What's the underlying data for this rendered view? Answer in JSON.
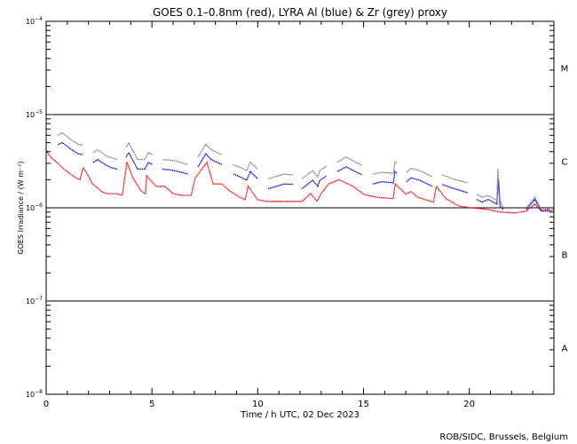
{
  "chart_data": {
    "type": "line",
    "title": "GOES 0.1–0.8nm (red), LYRA Al (blue) & Zr (grey) proxy",
    "xlabel": "Time / h UTC, 02 Dec 2023",
    "ylabel": "GOES Irradiance / (W m⁻²)",
    "xlim": [
      0,
      24
    ],
    "ylim": [
      1e-08,
      0.0001
    ],
    "yscale": "log",
    "xticks": [
      0,
      5,
      10,
      15,
      20
    ],
    "xtick_labels": [
      "0",
      "5",
      "10",
      "15",
      "20"
    ],
    "yticks": [
      {
        "value": 0.0001,
        "base": "10",
        "exp": "−4"
      },
      {
        "value": 1e-05,
        "base": "10",
        "exp": "−5"
      },
      {
        "value": 1e-06,
        "base": "10",
        "exp": "−6"
      },
      {
        "value": 1e-07,
        "base": "10",
        "exp": "−7"
      },
      {
        "value": 1e-08,
        "base": "10",
        "exp": "−8"
      }
    ],
    "flare_classes": [
      {
        "label": "M",
        "value": 3.16e-05
      },
      {
        "label": "C",
        "value": 3.16e-06
      },
      {
        "label": "B",
        "value": 3.16e-07
      },
      {
        "label": "A",
        "value": 3.16e-08
      }
    ],
    "class_lines": [
      1e-05,
      1e-06,
      1e-07
    ],
    "series": [
      {
        "name": "GOES 0.1-0.8nm",
        "color": "#ff0000",
        "segments": [
          [
            [
              0,
              4.1e-06
            ],
            [
              0.25,
              3.4e-06
            ],
            [
              0.5,
              3.1e-06
            ],
            [
              0.76,
              2.7e-06
            ],
            [
              1.1,
              2.35e-06
            ],
            [
              1.4,
              2.1e-06
            ],
            [
              1.6,
              2e-06
            ],
            [
              1.75,
              2.7e-06
            ],
            [
              1.9,
              2.4e-06
            ],
            [
              2.2,
              1.8e-06
            ],
            [
              2.65,
              1.48e-06
            ],
            [
              2.85,
              1.42e-06
            ],
            [
              3.3,
              1.42e-06
            ],
            [
              3.6,
              1.36e-06
            ],
            [
              3.82,
              3.1e-06
            ],
            [
              4.1,
              2.1e-06
            ],
            [
              4.5,
              1.5e-06
            ],
            [
              4.7,
              1.42e-06
            ],
            [
              4.75,
              2.2e-06
            ],
            [
              5.2,
              1.7e-06
            ],
            [
              5.6,
              1.7e-06
            ],
            [
              6.0,
              1.42e-06
            ],
            [
              6.4,
              1.36e-06
            ],
            [
              6.85,
              1.36e-06
            ],
            [
              7.05,
              2.1e-06
            ],
            [
              7.6,
              3.06e-06
            ],
            [
              7.9,
              1.8e-06
            ],
            [
              8.3,
              1.8e-06
            ],
            [
              8.7,
              1.5e-06
            ],
            [
              9.15,
              1.3e-06
            ],
            [
              9.4,
              1.22e-06
            ],
            [
              9.55,
              1.7e-06
            ],
            [
              10.0,
              1.22e-06
            ],
            [
              10.4,
              1.17e-06
            ],
            [
              11.25,
              1.17e-06
            ],
            [
              12.1,
              1.17e-06
            ],
            [
              12.5,
              1.42e-06
            ],
            [
              12.8,
              1.17e-06
            ],
            [
              13.0,
              1.42e-06
            ],
            [
              13.35,
              1.8e-06
            ],
            [
              13.85,
              2e-06
            ],
            [
              14.5,
              1.7e-06
            ],
            [
              15.0,
              1.4e-06
            ],
            [
              15.6,
              1.3e-06
            ],
            [
              16.4,
              1.25e-06
            ],
            [
              16.5,
              1.8e-06
            ],
            [
              17.0,
              1.4e-06
            ],
            [
              17.25,
              1.5e-06
            ],
            [
              17.55,
              1.3e-06
            ],
            [
              18.3,
              1.15e-06
            ],
            [
              18.45,
              1.7e-06
            ],
            [
              18.9,
              1.25e-06
            ],
            [
              19.5,
              1.05e-06
            ],
            [
              20.06,
              1e-06
            ],
            [
              20.9,
              9.6e-07
            ],
            [
              21.45,
              9e-07
            ],
            [
              22.15,
              8.8e-07
            ],
            [
              22.7,
              9.2e-07
            ],
            [
              23.1,
              1.1e-06
            ],
            [
              23.4,
              9.2e-07
            ],
            [
              23.8,
              9.2e-07
            ],
            [
              24,
              9.6e-07
            ]
          ]
        ]
      },
      {
        "name": "LYRA Al proxy",
        "color": "#0000ff",
        "segments": [
          [
            [
              0.55,
              4.75e-06
            ],
            [
              0.76,
              5e-06
            ],
            [
              1.17,
              4.25e-06
            ],
            [
              1.51,
              3.8e-06
            ],
            [
              1.72,
              3.7e-06
            ]
          ],
          [
            [
              2.22,
              3.05e-06
            ],
            [
              2.43,
              3.3e-06
            ],
            [
              2.85,
              2.85e-06
            ],
            [
              3.06,
              2.7e-06
            ],
            [
              3.36,
              2.6e-06
            ]
          ],
          [
            [
              3.78,
              3.5e-06
            ],
            [
              3.9,
              3.9e-06
            ],
            [
              4.11,
              3.2e-06
            ],
            [
              4.32,
              2.6e-06
            ],
            [
              4.66,
              2.6e-06
            ],
            [
              4.83,
              3.05e-06
            ],
            [
              5.04,
              2.9e-06
            ]
          ],
          [
            [
              5.5,
              2.6e-06
            ],
            [
              6.09,
              2.5e-06
            ],
            [
              6.71,
              2.3e-06
            ]
          ],
          [
            [
              7.18,
              2.75e-06
            ],
            [
              7.55,
              3.8e-06
            ],
            [
              7.8,
              3.3e-06
            ],
            [
              8.31,
              2.9e-06
            ]
          ],
          [
            [
              8.85,
              2.3e-06
            ],
            [
              9.27,
              2.1e-06
            ],
            [
              9.48,
              1.97e-06
            ],
            [
              9.65,
              2.45e-06
            ],
            [
              9.99,
              2.05e-06
            ]
          ],
          [
            [
              10.49,
              1.6e-06
            ],
            [
              11.25,
              1.8e-06
            ],
            [
              11.67,
              1.78e-06
            ]
          ],
          [
            [
              12.09,
              1.6e-06
            ],
            [
              12.59,
              1.97e-06
            ],
            [
              12.84,
              1.7e-06
            ],
            [
              12.93,
              1.97e-06
            ],
            [
              13.26,
              2.2e-06
            ]
          ],
          [
            [
              13.76,
              2.45e-06
            ],
            [
              14.18,
              2.75e-06
            ],
            [
              14.6,
              2.45e-06
            ],
            [
              14.94,
              2.25e-06
            ]
          ],
          [
            [
              15.44,
              1.8e-06
            ],
            [
              15.86,
              1.9e-06
            ],
            [
              16.41,
              1.85e-06
            ],
            [
              16.49,
              2.45e-06
            ],
            [
              16.57,
              2.35e-06
            ]
          ],
          [
            [
              17.04,
              1.9e-06
            ],
            [
              17.25,
              2.1e-06
            ],
            [
              17.67,
              1.97e-06
            ],
            [
              18.25,
              1.7e-06
            ]
          ],
          [
            [
              18.72,
              1.78e-06
            ],
            [
              19.22,
              1.62e-06
            ],
            [
              19.93,
              1.45e-06
            ]
          ],
          [
            [
              20.35,
              1.23e-06
            ],
            [
              20.6,
              1.15e-06
            ],
            [
              20.9,
              1.23e-06
            ],
            [
              21.3,
              1.1e-06
            ],
            [
              21.38,
              2e-06
            ],
            [
              21.45,
              1.05e-06
            ],
            [
              21.6,
              9.5e-07
            ]
          ],
          [
            [
              22.7,
              9.6e-07
            ],
            [
              23.1,
              1.23e-06
            ],
            [
              23.4,
              9.3e-07
            ],
            [
              23.8,
              9.5e-07
            ]
          ]
        ]
      },
      {
        "name": "LYRA Zr proxy",
        "color": "#808080",
        "segments": [
          [
            [
              0.55,
              6e-06
            ],
            [
              0.76,
              6.35e-06
            ],
            [
              1.17,
              5.4e-06
            ],
            [
              1.51,
              4.8e-06
            ],
            [
              1.72,
              4.7e-06
            ]
          ],
          [
            [
              2.22,
              3.9e-06
            ],
            [
              2.43,
              4.2e-06
            ],
            [
              2.85,
              3.6e-06
            ],
            [
              3.06,
              3.45e-06
            ],
            [
              3.36,
              3.3e-06
            ]
          ],
          [
            [
              3.78,
              4.45e-06
            ],
            [
              3.9,
              4.95e-06
            ],
            [
              4.11,
              4.05e-06
            ],
            [
              4.32,
              3.3e-06
            ],
            [
              4.66,
              3.3e-06
            ],
            [
              4.83,
              3.9e-06
            ],
            [
              5.04,
              3.7e-06
            ]
          ],
          [
            [
              5.5,
              3.3e-06
            ],
            [
              6.09,
              3.2e-06
            ],
            [
              6.71,
              2.9e-06
            ]
          ],
          [
            [
              7.18,
              3.5e-06
            ],
            [
              7.55,
              4.8e-06
            ],
            [
              7.8,
              4.2e-06
            ],
            [
              8.31,
              3.7e-06
            ]
          ],
          [
            [
              8.85,
              2.9e-06
            ],
            [
              9.27,
              2.65e-06
            ],
            [
              9.48,
              2.5e-06
            ],
            [
              9.65,
              3.1e-06
            ],
            [
              9.99,
              2.6e-06
            ]
          ],
          [
            [
              10.49,
              2.05e-06
            ],
            [
              11.25,
              2.3e-06
            ],
            [
              11.67,
              2.25e-06
            ]
          ],
          [
            [
              12.09,
              2.05e-06
            ],
            [
              12.59,
              2.5e-06
            ],
            [
              12.84,
              2.15e-06
            ],
            [
              12.93,
              2.5e-06
            ],
            [
              13.26,
              2.8e-06
            ]
          ],
          [
            [
              13.76,
              3.1e-06
            ],
            [
              14.18,
              3.5e-06
            ],
            [
              14.6,
              3.1e-06
            ],
            [
              14.94,
              2.85e-06
            ]
          ],
          [
            [
              15.44,
              2.3e-06
            ],
            [
              15.86,
              2.4e-06
            ],
            [
              16.41,
              2.35e-06
            ],
            [
              16.49,
              3.1e-06
            ],
            [
              16.57,
              3e-06
            ]
          ],
          [
            [
              17.04,
              2.4e-06
            ],
            [
              17.25,
              2.65e-06
            ],
            [
              17.67,
              2.5e-06
            ],
            [
              18.25,
              2.15e-06
            ]
          ],
          [
            [
              18.72,
              2.25e-06
            ],
            [
              19.22,
              2.05e-06
            ],
            [
              19.93,
              1.85e-06
            ]
          ],
          [
            [
              20.35,
              1.4e-06
            ],
            [
              20.6,
              1.3e-06
            ],
            [
              20.9,
              1.35e-06
            ],
            [
              21.3,
              1.2e-06
            ],
            [
              21.35,
              2.6e-06
            ],
            [
              21.45,
              1.2e-06
            ],
            [
              21.6,
              1e-06
            ]
          ],
          [
            [
              22.7,
              1e-06
            ],
            [
              23.1,
              1.3e-06
            ],
            [
              23.4,
              9.5e-07
            ],
            [
              23.8,
              9.7e-07
            ]
          ]
        ]
      }
    ]
  },
  "footer": {
    "credit": "ROB/SIDC, Brussels, Belgium"
  }
}
